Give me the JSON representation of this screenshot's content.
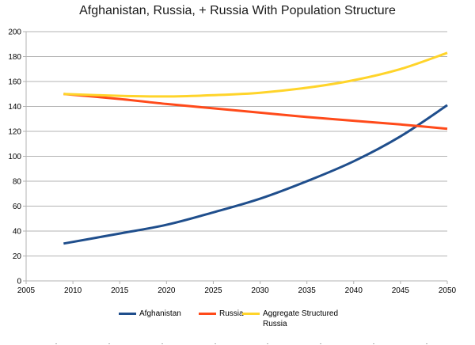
{
  "chart_data": {
    "type": "line",
    "title": "Afghanistan, Russia, + Russia With Population Structure",
    "xlabel": "",
    "ylabel": "",
    "xlim": [
      2005,
      2050
    ],
    "ylim": [
      0,
      200
    ],
    "x_ticks": [
      2005,
      2010,
      2015,
      2020,
      2025,
      2030,
      2035,
      2040,
      2045,
      2050
    ],
    "y_ticks": [
      0,
      20,
      40,
      60,
      80,
      100,
      120,
      140,
      160,
      180,
      200
    ],
    "grid": "horizontal",
    "legend_position": "bottom",
    "series": [
      {
        "name": "Afghanistan",
        "color": "#1f4e8c",
        "x": [
          2009,
          2015,
          2020,
          2025,
          2030,
          2035,
          2040,
          2045,
          2050
        ],
        "values": [
          30,
          38,
          45,
          55,
          66,
          80,
          96,
          116,
          141
        ]
      },
      {
        "name": "Russia",
        "color": "#ff4a1a",
        "x": [
          2009,
          2015,
          2020,
          2025,
          2030,
          2035,
          2040,
          2045,
          2050
        ],
        "values": [
          150,
          146,
          142,
          138.5,
          135,
          131.5,
          128.5,
          125.5,
          122
        ]
      },
      {
        "name": "Aggregate Structured Russia",
        "color": "#ffd42a",
        "x": [
          2009,
          2015,
          2020,
          2025,
          2030,
          2035,
          2040,
          2045,
          2050
        ],
        "values": [
          150,
          148.5,
          148,
          149,
          151,
          155,
          161,
          170,
          183
        ]
      }
    ]
  }
}
